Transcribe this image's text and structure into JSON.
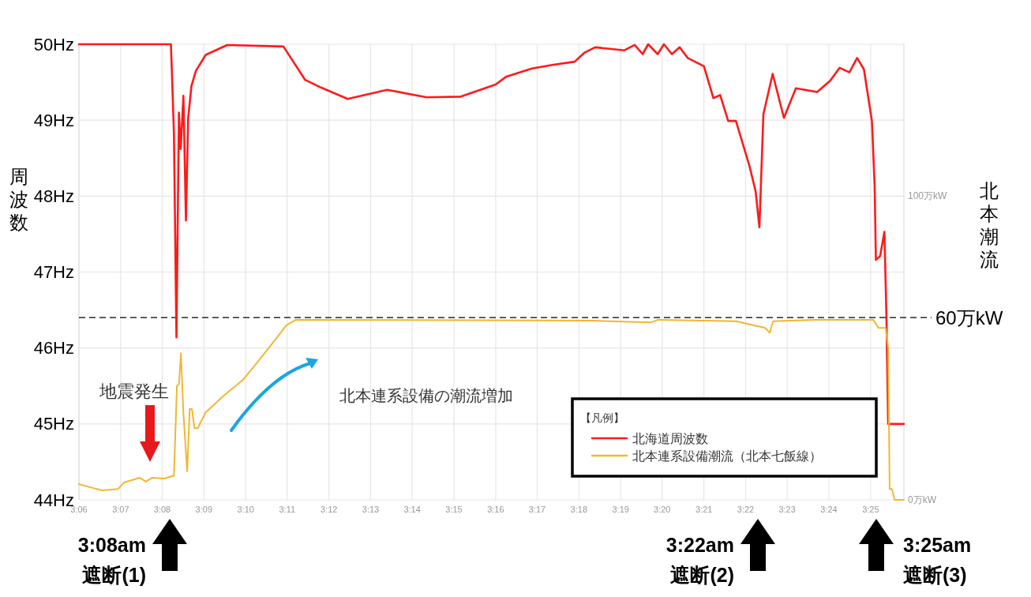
{
  "chart_data": {
    "type": "line",
    "ylabel": "周波数",
    "y2label": "北本潮流",
    "legend_title": "【凡例】",
    "xlim": [
      3.1,
      3.43
    ],
    "xticks": [
      {
        "value": 3.1,
        "label": "3:06"
      },
      {
        "value": 3.1167,
        "label": "3:07"
      },
      {
        "value": 3.1333,
        "label": "3:08"
      },
      {
        "value": 3.15,
        "label": "3:09"
      },
      {
        "value": 3.1667,
        "label": "3:10"
      },
      {
        "value": 3.1833,
        "label": "3:11"
      },
      {
        "value": 3.2,
        "label": "3:12"
      },
      {
        "value": 3.2167,
        "label": "3:13"
      },
      {
        "value": 3.2333,
        "label": "3:14"
      },
      {
        "value": 3.25,
        "label": "3:15"
      },
      {
        "value": 3.2667,
        "label": "3:16"
      },
      {
        "value": 3.2833,
        "label": "3:17"
      },
      {
        "value": 3.3,
        "label": "3:18"
      },
      {
        "value": 3.3167,
        "label": "3:19"
      },
      {
        "value": 3.3333,
        "label": "3:20"
      },
      {
        "value": 3.35,
        "label": "3:21"
      },
      {
        "value": 3.3667,
        "label": "3:22"
      },
      {
        "value": 3.3833,
        "label": "3:23"
      },
      {
        "value": 3.4,
        "label": "3:24"
      },
      {
        "value": 3.4167,
        "label": "3:25"
      }
    ],
    "ylim": [
      44,
      50
    ],
    "yticks": [
      {
        "value": 44,
        "label": "44Hz"
      },
      {
        "value": 45,
        "label": "45Hz"
      },
      {
        "value": 46,
        "label": "46Hz"
      },
      {
        "value": 47,
        "label": "47Hz"
      },
      {
        "value": 48,
        "label": "48Hz"
      },
      {
        "value": 49,
        "label": "49Hz"
      },
      {
        "value": 50,
        "label": "50Hz"
      }
    ],
    "y2lim": [
      0,
      150
    ],
    "y2ticks": [
      {
        "value": 0,
        "label": "0万kW"
      },
      {
        "value": 100,
        "label": "100万kW"
      }
    ],
    "grid": true,
    "legend": "bottom right",
    "line_style": "solid",
    "series": [
      {
        "name": "北海道周波数",
        "color": "#ff1a1a",
        "x": [
          3.1,
          3.1368,
          3.138,
          3.139,
          3.14,
          3.1407,
          3.1418,
          3.1428,
          3.1437,
          3.145,
          3.1468,
          3.1507,
          3.1593,
          3.1818,
          3.1905,
          3.1968,
          3.2075,
          3.2233,
          3.2392,
          3.2528,
          3.2667,
          3.2708,
          3.2812,
          3.2898,
          3.2983,
          3.3023,
          3.3065,
          3.3182,
          3.3223,
          3.3255,
          3.3277,
          3.3315,
          3.334,
          3.3372,
          3.3403,
          3.3435,
          3.35,
          3.3538,
          3.3565,
          3.3597,
          3.3628,
          3.3682,
          3.3707,
          3.3722,
          3.3738,
          3.3775,
          3.382,
          3.3868,
          3.3953,
          3.4005,
          3.4043,
          3.4082,
          3.4113,
          3.414,
          3.4172,
          3.4183,
          3.4188,
          3.4205,
          3.4222,
          3.423,
          3.4237,
          3.43
        ],
        "values": [
          50.0,
          50.0,
          48.83,
          46.14,
          49.1,
          48.62,
          49.32,
          47.68,
          49.03,
          49.45,
          49.65,
          49.86,
          49.99,
          49.97,
          49.53,
          49.43,
          49.28,
          49.4,
          49.3,
          49.31,
          49.47,
          49.57,
          49.68,
          49.73,
          49.77,
          49.89,
          49.96,
          49.92,
          49.99,
          49.87,
          50.0,
          49.87,
          50.0,
          49.87,
          49.96,
          49.82,
          49.71,
          49.29,
          49.33,
          48.99,
          48.99,
          48.4,
          48.06,
          47.59,
          49.08,
          49.61,
          49.03,
          49.42,
          49.37,
          49.52,
          49.69,
          49.63,
          49.82,
          49.67,
          48.99,
          48.14,
          47.16,
          47.21,
          47.53,
          46.44,
          45.0,
          45.0
        ]
      },
      {
        "name": "北本連系設備潮流（北本七飯線）",
        "color": "#f2b632",
        "axis": "y2",
        "x": [
          3.1,
          3.1043,
          3.1093,
          3.1157,
          3.118,
          3.1243,
          3.1268,
          3.1293,
          3.1343,
          3.138,
          3.1392,
          3.14,
          3.1408,
          3.1418,
          3.1433,
          3.1443,
          3.1452,
          3.1462,
          3.1475,
          3.1507,
          3.1582,
          3.1657,
          3.1718,
          3.1768,
          3.183,
          3.1868,
          3.3055,
          3.3287,
          3.3317,
          3.3628,
          3.3745,
          3.3763,
          3.3777,
          3.3953,
          3.4178,
          3.4198,
          3.4227,
          3.4237,
          3.4243,
          3.4252,
          3.4263,
          3.43
        ],
        "values": [
          5.2,
          4.2,
          3.1,
          3.6,
          5.7,
          7.3,
          6.0,
          7.3,
          7.0,
          8.0,
          37.5,
          38.1,
          48.3,
          28.3,
          9.4,
          29.9,
          29.9,
          23.6,
          23.6,
          28.8,
          34.5,
          39.6,
          45.7,
          50.9,
          57.5,
          59.3,
          59.0,
          58.4,
          59.3,
          58.8,
          56.6,
          55.0,
          58.8,
          59.3,
          59.3,
          56.6,
          56.6,
          50,
          3.6,
          3.6,
          0,
          0
        ]
      }
    ],
    "ref_lines": [
      {
        "axis": "y2",
        "value": 60,
        "label": "60万kW",
        "color": "#000000",
        "line_style": "dashed"
      }
    ],
    "annotations": [
      "地震発生",
      "北本連系設備の潮流増加",
      "3:08am 遮断(1)",
      "3:22am 遮断(2)",
      "3:25am 遮断(3)"
    ]
  }
}
